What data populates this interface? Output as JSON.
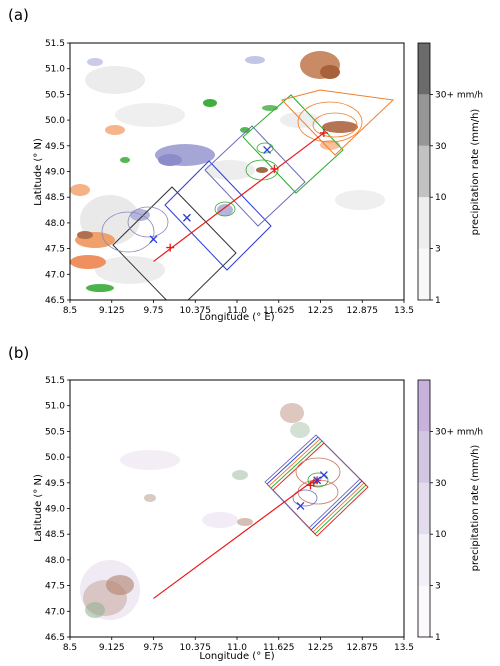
{
  "chart_data": [
    {
      "panel_label": "(a)",
      "type": "heatmap",
      "xlabel": "Longitude (° E)",
      "ylabel": "Latitude (° N)",
      "x_ticks": [
        "8.5",
        "9.125",
        "9.75",
        "10.375",
        "11.0",
        "11.625",
        "12.25",
        "12.875",
        "13.5"
      ],
      "y_ticks": [
        "46.5",
        "47.0",
        "47.5",
        "48.0",
        "48.5",
        "49.0",
        "49.5",
        "50.0",
        "50.5",
        "51.0",
        "51.5"
      ],
      "xlim": [
        8.5,
        13.5
      ],
      "ylim": [
        46.5,
        51.5
      ],
      "colorbar": {
        "label": "precipitation rate (mm/h)",
        "ticks": [
          "1",
          "3",
          "10",
          "30",
          "30+ mm/h"
        ],
        "colors": [
          "#f8f8f8",
          "#eeeeee",
          "#c2c2c2",
          "#969696",
          "#6b6b6b"
        ]
      },
      "track_line": {
        "start": [
          9.75,
          47.25
        ],
        "end": [
          12.3,
          49.75
        ],
        "color": "#e8191b"
      },
      "track_points": [
        [
          10.0,
          47.52
        ],
        [
          11.56,
          49.05
        ],
        [
          12.3,
          49.75
        ]
      ],
      "blue_markers": [
        [
          9.75,
          47.68
        ],
        [
          10.25,
          48.1
        ],
        [
          11.45,
          49.42
        ]
      ],
      "color_map": {
        "track": "#e8191b",
        "blue": "#2b3bd9",
        "orange": "#f07f2b",
        "green": "#2bab2b",
        "purple": "#6d6db8",
        "dark": "#333333"
      }
    },
    {
      "panel_label": "(b)",
      "type": "heatmap",
      "xlabel": "Longitude (° E)",
      "ylabel": "Latitude (° N)",
      "x_ticks": [
        "8.5",
        "9.125",
        "9.75",
        "10.375",
        "11.0",
        "11.625",
        "12.25",
        "12.875",
        "13.5"
      ],
      "y_ticks": [
        "46.5",
        "47.0",
        "47.5",
        "48.0",
        "48.5",
        "49.0",
        "49.5",
        "50.0",
        "50.5",
        "51.0",
        "51.5"
      ],
      "xlim": [
        8.5,
        13.5
      ],
      "ylim": [
        46.5,
        51.5
      ],
      "colorbar": {
        "label": "precipitation rate (mm/h)",
        "ticks": [
          "1",
          "3",
          "10",
          "30",
          "30+ mm/h"
        ],
        "colors": [
          "#fbf9fc",
          "#f3eff7",
          "#e2dcee",
          "#d3c6e4",
          "#c8b2dc"
        ]
      },
      "track_line": {
        "start": [
          9.75,
          47.25
        ],
        "end": [
          12.15,
          49.55
        ],
        "color": "#e8191b"
      },
      "track_points": [
        [
          12.1,
          49.45
        ],
        [
          12.2,
          49.55
        ],
        [
          12.15,
          49.5
        ]
      ],
      "blue_markers": [
        [
          11.95,
          49.05
        ],
        [
          12.2,
          49.55
        ],
        [
          12.3,
          49.65
        ]
      ],
      "color_map": {
        "track": "#e8191b",
        "blue": "#2b3bd9",
        "orange": "#f07f2b",
        "green": "#2bab2b",
        "purple": "#6d6db8",
        "dark": "#333333"
      }
    }
  ]
}
